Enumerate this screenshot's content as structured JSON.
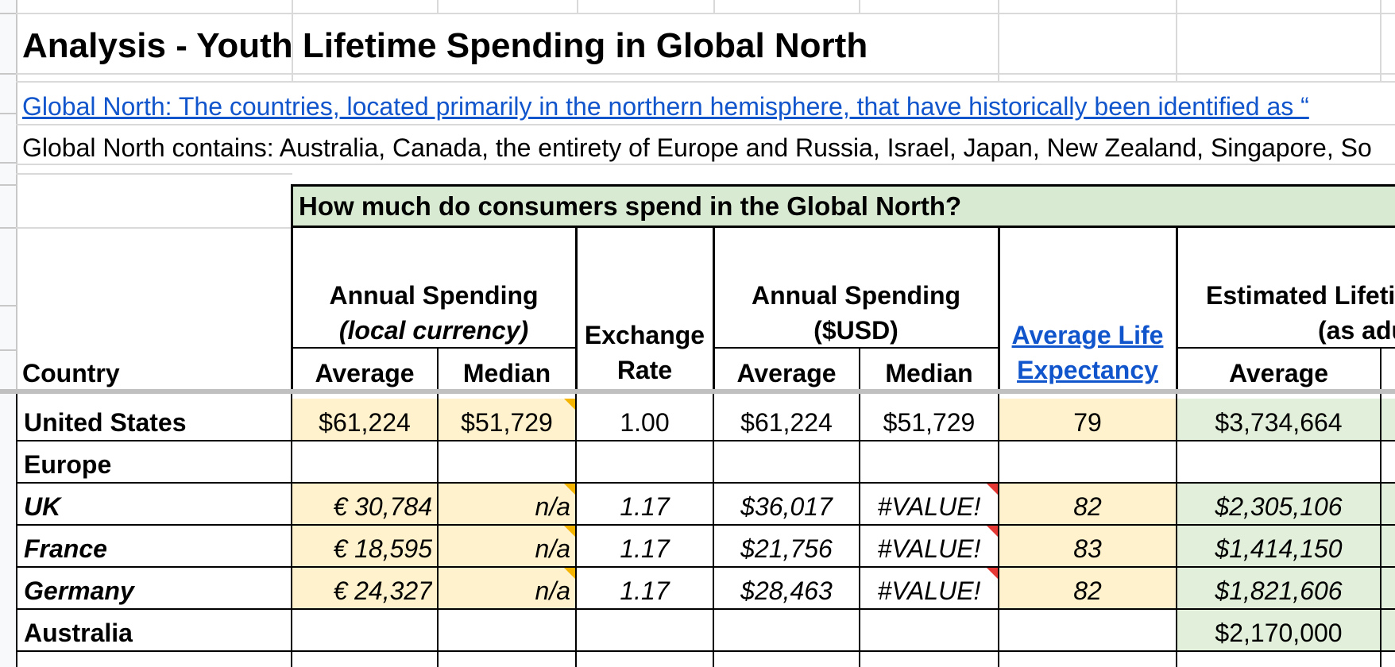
{
  "title": "Analysis - Youth Lifetime Spending in Global North",
  "definition_link": "Global North: The countries, located primarily in the northern hemisphere, that have historically been identified as “",
  "contains_text": "Global North contains: Australia, Canada, the entirety of Europe and Russia, Israel, Japan, New Zealand, Singapore, So",
  "section_header": "How much do consumers spend in the Global North?",
  "columns": {
    "country": "Country",
    "local_group_line1": "Annual Spending",
    "local_group_line2": "(local currency)",
    "local_average": "Average",
    "local_median": "Median",
    "exchange_line1": "Exchange",
    "exchange_line2": "Rate",
    "usd_group_line1": "Annual Spending",
    "usd_group_line2": "($USD)",
    "usd_average": "Average",
    "usd_median": "Median",
    "life_line1": "Average Life",
    "life_line2": "Expectancy",
    "lifetime_group_line1": "Estimated Lifeti",
    "lifetime_group_line2": "(as adu",
    "lifetime_average": "Average"
  },
  "rows": [
    {
      "country": "United States",
      "local_avg": "$61,224",
      "local_median": "$51,729",
      "rate": "1.00",
      "usd_avg": "$61,224",
      "usd_median": "$51,729",
      "life": "79",
      "lifetime_avg": "$3,734,664"
    },
    {
      "country": "Europe",
      "local_avg": "",
      "local_median": "",
      "rate": "",
      "usd_avg": "",
      "usd_median": "",
      "life": "",
      "lifetime_avg": ""
    },
    {
      "country": "UK",
      "local_avg": "€ 30,784",
      "local_median": "n/a",
      "rate": "1.17",
      "usd_avg": "$36,017",
      "usd_median": "#VALUE!",
      "life": "82",
      "lifetime_avg": "$2,305,106"
    },
    {
      "country": "France",
      "local_avg": "€ 18,595",
      "local_median": "n/a",
      "rate": "1.17",
      "usd_avg": "$21,756",
      "usd_median": "#VALUE!",
      "life": "83",
      "lifetime_avg": "$1,414,150"
    },
    {
      "country": "Germany",
      "local_avg": "€ 24,327",
      "local_median": "n/a",
      "rate": "1.17",
      "usd_avg": "$28,463",
      "usd_median": "#VALUE!",
      "life": "82",
      "lifetime_avg": "$1,821,606"
    },
    {
      "country": "Australia",
      "local_avg": "",
      "local_median": "",
      "rate": "",
      "usd_avg": "",
      "usd_median": "",
      "life": "",
      "lifetime_avg": "$2,170,000"
    }
  ],
  "colors": {
    "header_green": "#d9ead3",
    "input_yellow": "#fff2cc",
    "output_green": "#e2efda",
    "link_blue": "#1155cc",
    "comment_orange": "#f4b400",
    "error_red": "#e53935"
  }
}
